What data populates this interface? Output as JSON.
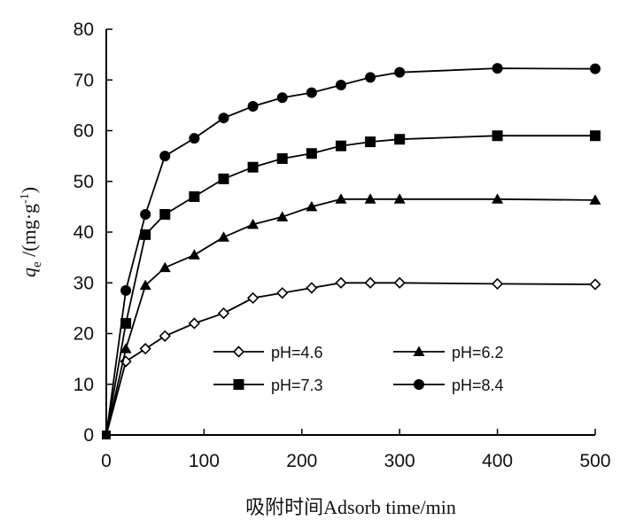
{
  "chart_data": {
    "type": "line",
    "xlabel": "吸附时间Adsorb time/min",
    "ylabel": {
      "symbol": "q",
      "subscript": "e",
      "unit_open": " /(mg·g",
      "unit_sup": "-1",
      "unit_close": ")"
    },
    "xlim": [
      0,
      500
    ],
    "ylim": [
      0,
      80
    ],
    "x_ticks": [
      0,
      100,
      200,
      300,
      400,
      500
    ],
    "y_ticks": [
      0,
      10,
      20,
      30,
      40,
      50,
      60,
      70,
      80
    ],
    "grid": false,
    "legend_position": "lower-right inside plot",
    "series": [
      {
        "name": "pH=4.6",
        "marker": "diamond-open",
        "x": [
          0,
          20,
          40,
          60,
          90,
          120,
          150,
          180,
          210,
          240,
          270,
          300,
          400,
          500
        ],
        "y": [
          0,
          14.5,
          17,
          19.5,
          22,
          24,
          27,
          28,
          29,
          30,
          30,
          30,
          29.8,
          29.7
        ]
      },
      {
        "name": "pH=6.2",
        "marker": "triangle-filled",
        "x": [
          0,
          20,
          40,
          60,
          90,
          120,
          150,
          180,
          210,
          240,
          270,
          300,
          400,
          500
        ],
        "y": [
          0,
          17,
          29.5,
          33,
          35.5,
          39,
          41.5,
          43,
          45,
          46.5,
          46.5,
          46.5,
          46.5,
          46.3
        ]
      },
      {
        "name": "pH=7.3",
        "marker": "square-filled",
        "x": [
          0,
          20,
          40,
          60,
          90,
          120,
          150,
          180,
          210,
          240,
          270,
          300,
          400,
          500
        ],
        "y": [
          0,
          22,
          39.5,
          43.5,
          47,
          50.5,
          52.8,
          54.5,
          55.5,
          57,
          57.8,
          58.3,
          59,
          59
        ]
      },
      {
        "name": "pH=8.4",
        "marker": "circle-filled",
        "x": [
          0,
          20,
          40,
          60,
          90,
          120,
          150,
          180,
          210,
          240,
          270,
          300,
          400,
          500
        ],
        "y": [
          0,
          28.5,
          43.5,
          55,
          58.5,
          62.5,
          64.8,
          66.5,
          67.5,
          69,
          70.5,
          71.5,
          72.3,
          72.2
        ]
      }
    ]
  }
}
